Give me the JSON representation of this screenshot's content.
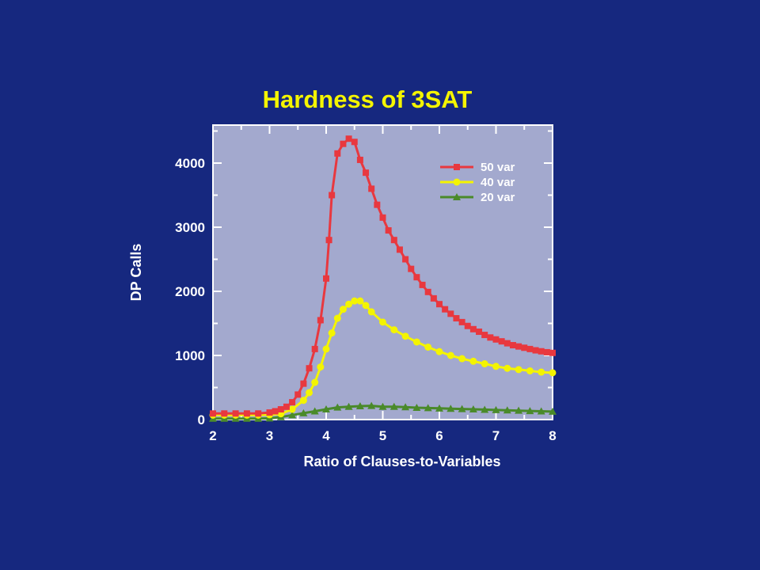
{
  "colors": {
    "background": "#16287f",
    "plot_background": "#a3a9ce",
    "frame": "#ffffff",
    "title": "#f4f400"
  },
  "chart_data": {
    "type": "line",
    "title": "Hardness of 3SAT",
    "xlabel": "Ratio of Clauses-to-Variables",
    "ylabel": "DP Calls",
    "xlim": [
      2,
      8
    ],
    "ylim": [
      0,
      4600
    ],
    "x_ticks": [
      "2",
      "3",
      "4",
      "5",
      "6",
      "7",
      "8"
    ],
    "y_ticks": [
      "0",
      "1000",
      "2000",
      "3000",
      "4000"
    ],
    "legend_position": "top-right",
    "series": [
      {
        "name": "50 var",
        "color": "#e8383f",
        "marker": "square",
        "x": [
          2.0,
          2.2,
          2.4,
          2.6,
          2.8,
          3.0,
          3.1,
          3.2,
          3.3,
          3.4,
          3.5,
          3.6,
          3.7,
          3.8,
          3.9,
          4.0,
          4.05,
          4.1,
          4.2,
          4.3,
          4.4,
          4.5,
          4.6,
          4.7,
          4.8,
          4.9,
          5.0,
          5.1,
          5.2,
          5.3,
          5.4,
          5.5,
          5.6,
          5.7,
          5.8,
          5.9,
          6.0,
          6.1,
          6.2,
          6.3,
          6.4,
          6.5,
          6.6,
          6.7,
          6.8,
          6.9,
          7.0,
          7.1,
          7.2,
          7.3,
          7.4,
          7.5,
          7.6,
          7.7,
          7.8,
          7.9,
          8.0
        ],
        "y": [
          95,
          95,
          95,
          95,
          95,
          110,
          130,
          160,
          200,
          270,
          390,
          560,
          800,
          1100,
          1550,
          2200,
          2800,
          3500,
          4150,
          4300,
          4380,
          4330,
          4050,
          3850,
          3600,
          3350,
          3150,
          2950,
          2800,
          2650,
          2500,
          2350,
          2220,
          2100,
          1990,
          1890,
          1800,
          1720,
          1650,
          1580,
          1520,
          1460,
          1410,
          1370,
          1320,
          1280,
          1250,
          1220,
          1190,
          1160,
          1140,
          1120,
          1100,
          1080,
          1065,
          1050,
          1040
        ]
      },
      {
        "name": "40 var",
        "color": "#f4f400",
        "marker": "circle",
        "x": [
          2.0,
          2.2,
          2.4,
          2.6,
          2.8,
          3.0,
          3.2,
          3.4,
          3.6,
          3.7,
          3.8,
          3.9,
          4.0,
          4.1,
          4.2,
          4.3,
          4.4,
          4.5,
          4.6,
          4.7,
          4.8,
          5.0,
          5.2,
          5.4,
          5.6,
          5.8,
          6.0,
          6.2,
          6.4,
          6.6,
          6.8,
          7.0,
          7.2,
          7.4,
          7.6,
          7.8,
          8.0
        ],
        "y": [
          70,
          70,
          70,
          70,
          70,
          75,
          90,
          160,
          300,
          420,
          580,
          820,
          1100,
          1350,
          1580,
          1720,
          1800,
          1850,
          1850,
          1780,
          1680,
          1520,
          1400,
          1300,
          1210,
          1130,
          1060,
          1000,
          950,
          910,
          870,
          830,
          800,
          780,
          760,
          740,
          730
        ]
      },
      {
        "name": "20 var",
        "color": "#4a8a2a",
        "marker": "triangle",
        "x": [
          2.0,
          2.2,
          2.4,
          2.6,
          2.8,
          3.0,
          3.2,
          3.4,
          3.6,
          3.8,
          4.0,
          4.2,
          4.4,
          4.6,
          4.8,
          5.0,
          5.2,
          5.4,
          5.6,
          5.8,
          6.0,
          6.2,
          6.4,
          6.6,
          6.8,
          7.0,
          7.2,
          7.4,
          7.6,
          7.8,
          8.0
        ],
        "y": [
          15,
          15,
          15,
          15,
          15,
          20,
          40,
          70,
          100,
          130,
          160,
          190,
          200,
          210,
          215,
          200,
          200,
          195,
          185,
          180,
          175,
          170,
          165,
          160,
          155,
          150,
          145,
          140,
          135,
          130,
          125
        ]
      }
    ]
  }
}
